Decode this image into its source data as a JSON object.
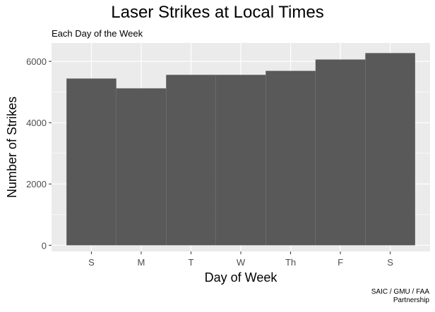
{
  "chart_data": {
    "type": "bar",
    "title": "Laser Strikes at Local Times",
    "subtitle": "Each Day of the Week",
    "caption": [
      "SAIC / GMU / FAA",
      "Partnership"
    ],
    "xlabel": "Day of Week",
    "ylabel": "Number of Strikes",
    "categories": [
      "S",
      "M",
      "T",
      "W",
      "Th",
      "F",
      "S"
    ],
    "values": [
      5440,
      5120,
      5560,
      5560,
      5690,
      6060,
      6270
    ],
    "ylim": [
      -200,
      6600
    ],
    "yticks": [
      0,
      2000,
      4000,
      6000
    ],
    "ytick_labels": [
      "0",
      "2000",
      "4000",
      "6000"
    ],
    "grid": true,
    "colors": {
      "bar": "#595959",
      "panel": "#ebebeb",
      "grid": "#ffffff"
    }
  }
}
